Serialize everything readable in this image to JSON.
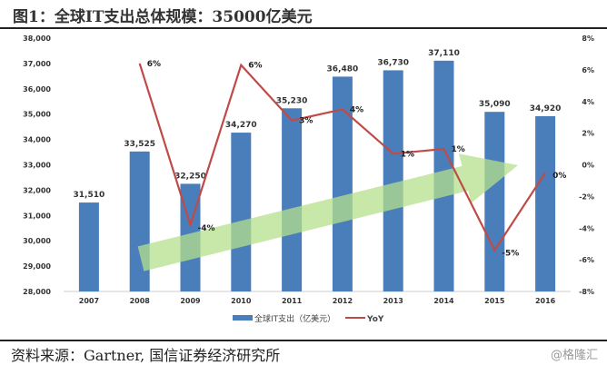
{
  "title": "图1：全球IT支出总体规模：35000亿美元",
  "source": "资料来源：Gartner, 国信证券经济研究所",
  "watermark": "@格隆汇",
  "chart_data": {
    "type": "bar+line",
    "categories": [
      "2007",
      "2008",
      "2009",
      "2010",
      "2011",
      "2012",
      "2013",
      "2014",
      "2015",
      "2016"
    ],
    "series": [
      {
        "name": "全球IT支出（亿美元）",
        "type": "bar",
        "axis": "left",
        "color": "#4a7ebb",
        "values": [
          31510,
          33525,
          32250,
          34270,
          35230,
          36480,
          36730,
          37110,
          35090,
          34920
        ],
        "labels": [
          "31,510",
          "33,525",
          "32,250",
          "34,270",
          "35,230",
          "36,480",
          "36,730",
          "37,110",
          "35,090",
          "34,920"
        ]
      },
      {
        "name": "YoY",
        "type": "line",
        "axis": "right",
        "color": "#be4b48",
        "values": [
          null,
          6.4,
          -3.8,
          6.3,
          2.8,
          3.5,
          0.7,
          1.0,
          -5.4,
          -0.5
        ],
        "labels": [
          "",
          "6%",
          "-4%",
          "6%",
          "3%",
          "4%",
          "1%",
          "1%",
          "-5%",
          "0%"
        ]
      }
    ],
    "ylim_left": [
      28000,
      38000
    ],
    "yticks_left": [
      "28,000",
      "29,000",
      "30,000",
      "31,000",
      "32,000",
      "33,000",
      "34,000",
      "35,000",
      "36,000",
      "37,000",
      "38,000"
    ],
    "ylim_right": [
      -8,
      8
    ],
    "yticks_right": [
      "-8%",
      "-6%",
      "-4%",
      "-2%",
      "0%",
      "2%",
      "4%",
      "6%",
      "8%"
    ],
    "legend": "bottom",
    "grid": false,
    "annotation": "green upward trend arrow",
    "arrow_color": "#b5e08c"
  }
}
